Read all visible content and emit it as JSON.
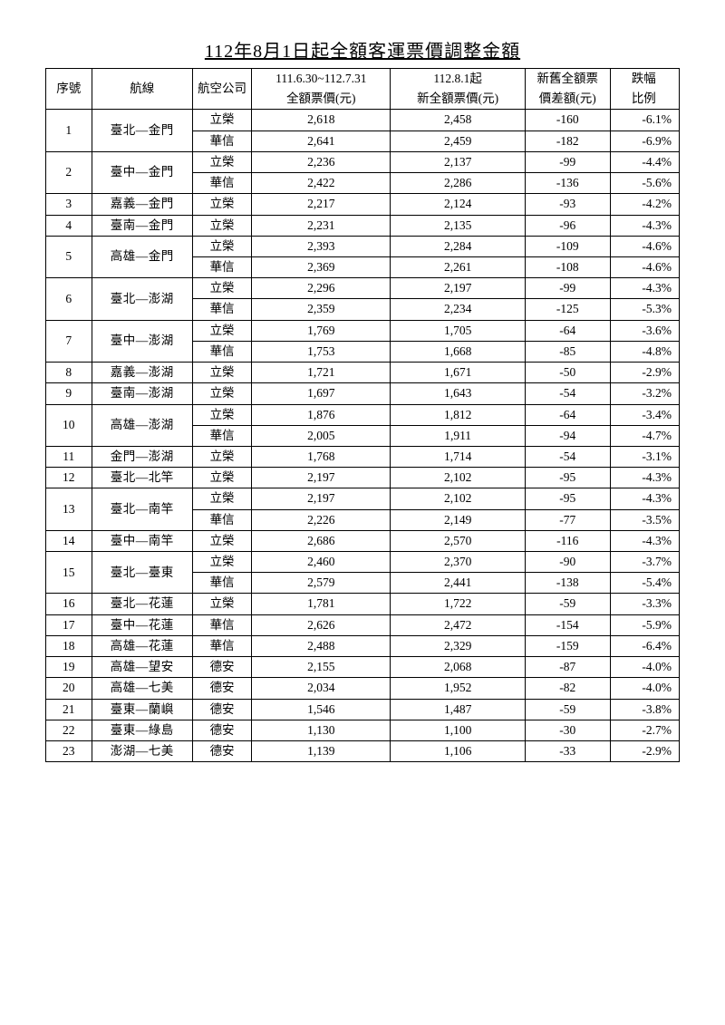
{
  "title": "112年8月1日起全額客運票價調整金額",
  "columns": {
    "seq": "序號",
    "route": "航線",
    "airline": "航空公司",
    "old_line1": "111.6.30~112.7.31",
    "old_line2": "全額票價(元)",
    "new_line1": "112.8.1起",
    "new_line2": "新全額票價(元)",
    "diff_line1": "新舊全額票",
    "diff_line2": "價差額(元)",
    "pct_line1": "跌幅",
    "pct_line2": "比例"
  },
  "style": {
    "background_color": "#ffffff",
    "border_color": "#000000",
    "font_size_title": 20,
    "font_size_body": 13.5
  },
  "routes": [
    {
      "seq": "1",
      "route": "臺北—金門",
      "airlines": [
        {
          "airline": "立榮",
          "old": "2,618",
          "new": "2,458",
          "diff": "-160",
          "pct": "-6.1%"
        },
        {
          "airline": "華信",
          "old": "2,641",
          "new": "2,459",
          "diff": "-182",
          "pct": "-6.9%"
        }
      ]
    },
    {
      "seq": "2",
      "route": "臺中—金門",
      "airlines": [
        {
          "airline": "立榮",
          "old": "2,236",
          "new": "2,137",
          "diff": "-99",
          "pct": "-4.4%"
        },
        {
          "airline": "華信",
          "old": "2,422",
          "new": "2,286",
          "diff": "-136",
          "pct": "-5.6%"
        }
      ]
    },
    {
      "seq": "3",
      "route": "嘉義—金門",
      "airlines": [
        {
          "airline": "立榮",
          "old": "2,217",
          "new": "2,124",
          "diff": "-93",
          "pct": "-4.2%"
        }
      ]
    },
    {
      "seq": "4",
      "route": "臺南—金門",
      "airlines": [
        {
          "airline": "立榮",
          "old": "2,231",
          "new": "2,135",
          "diff": "-96",
          "pct": "-4.3%"
        }
      ]
    },
    {
      "seq": "5",
      "route": "高雄—金門",
      "airlines": [
        {
          "airline": "立榮",
          "old": "2,393",
          "new": "2,284",
          "diff": "-109",
          "pct": "-4.6%"
        },
        {
          "airline": "華信",
          "old": "2,369",
          "new": "2,261",
          "diff": "-108",
          "pct": "-4.6%"
        }
      ]
    },
    {
      "seq": "6",
      "route": "臺北—澎湖",
      "airlines": [
        {
          "airline": "立榮",
          "old": "2,296",
          "new": "2,197",
          "diff": "-99",
          "pct": "-4.3%"
        },
        {
          "airline": "華信",
          "old": "2,359",
          "new": "2,234",
          "diff": "-125",
          "pct": "-5.3%"
        }
      ]
    },
    {
      "seq": "7",
      "route": "臺中—澎湖",
      "airlines": [
        {
          "airline": "立榮",
          "old": "1,769",
          "new": "1,705",
          "diff": "-64",
          "pct": "-3.6%"
        },
        {
          "airline": "華信",
          "old": "1,753",
          "new": "1,668",
          "diff": "-85",
          "pct": "-4.8%"
        }
      ]
    },
    {
      "seq": "8",
      "route": "嘉義—澎湖",
      "airlines": [
        {
          "airline": "立榮",
          "old": "1,721",
          "new": "1,671",
          "diff": "-50",
          "pct": "-2.9%"
        }
      ]
    },
    {
      "seq": "9",
      "route": "臺南—澎湖",
      "airlines": [
        {
          "airline": "立榮",
          "old": "1,697",
          "new": "1,643",
          "diff": "-54",
          "pct": "-3.2%"
        }
      ]
    },
    {
      "seq": "10",
      "route": "高雄—澎湖",
      "airlines": [
        {
          "airline": "立榮",
          "old": "1,876",
          "new": "1,812",
          "diff": "-64",
          "pct": "-3.4%"
        },
        {
          "airline": "華信",
          "old": "2,005",
          "new": "1,911",
          "diff": "-94",
          "pct": "-4.7%"
        }
      ]
    },
    {
      "seq": "11",
      "route": "金門—澎湖",
      "airlines": [
        {
          "airline": "立榮",
          "old": "1,768",
          "new": "1,714",
          "diff": "-54",
          "pct": "-3.1%"
        }
      ]
    },
    {
      "seq": "12",
      "route": "臺北—北竿",
      "airlines": [
        {
          "airline": "立榮",
          "old": "2,197",
          "new": "2,102",
          "diff": "-95",
          "pct": "-4.3%"
        }
      ]
    },
    {
      "seq": "13",
      "route": "臺北—南竿",
      "airlines": [
        {
          "airline": "立榮",
          "old": "2,197",
          "new": "2,102",
          "diff": "-95",
          "pct": "-4.3%"
        },
        {
          "airline": "華信",
          "old": "2,226",
          "new": "2,149",
          "diff": "-77",
          "pct": "-3.5%"
        }
      ]
    },
    {
      "seq": "14",
      "route": "臺中—南竿",
      "airlines": [
        {
          "airline": "立榮",
          "old": "2,686",
          "new": "2,570",
          "diff": "-116",
          "pct": "-4.3%"
        }
      ]
    },
    {
      "seq": "15",
      "route": "臺北—臺東",
      "airlines": [
        {
          "airline": "立榮",
          "old": "2,460",
          "new": "2,370",
          "diff": "-90",
          "pct": "-3.7%"
        },
        {
          "airline": "華信",
          "old": "2,579",
          "new": "2,441",
          "diff": "-138",
          "pct": "-5.4%"
        }
      ]
    },
    {
      "seq": "16",
      "route": "臺北—花蓮",
      "airlines": [
        {
          "airline": "立榮",
          "old": "1,781",
          "new": "1,722",
          "diff": "-59",
          "pct": "-3.3%"
        }
      ]
    },
    {
      "seq": "17",
      "route": "臺中—花蓮",
      "airlines": [
        {
          "airline": "華信",
          "old": "2,626",
          "new": "2,472",
          "diff": "-154",
          "pct": "-5.9%"
        }
      ]
    },
    {
      "seq": "18",
      "route": "高雄—花蓮",
      "airlines": [
        {
          "airline": "華信",
          "old": "2,488",
          "new": "2,329",
          "diff": "-159",
          "pct": "-6.4%"
        }
      ]
    },
    {
      "seq": "19",
      "route": "高雄—望安",
      "airlines": [
        {
          "airline": "德安",
          "old": "2,155",
          "new": "2,068",
          "diff": "-87",
          "pct": "-4.0%"
        }
      ]
    },
    {
      "seq": "20",
      "route": "高雄—七美",
      "airlines": [
        {
          "airline": "德安",
          "old": "2,034",
          "new": "1,952",
          "diff": "-82",
          "pct": "-4.0%"
        }
      ]
    },
    {
      "seq": "21",
      "route": "臺東—蘭嶼",
      "airlines": [
        {
          "airline": "德安",
          "old": "1,546",
          "new": "1,487",
          "diff": "-59",
          "pct": "-3.8%"
        }
      ]
    },
    {
      "seq": "22",
      "route": "臺東—綠島",
      "airlines": [
        {
          "airline": "德安",
          "old": "1,130",
          "new": "1,100",
          "diff": "-30",
          "pct": "-2.7%"
        }
      ]
    },
    {
      "seq": "23",
      "route": "澎湖—七美",
      "airlines": [
        {
          "airline": "德安",
          "old": "1,139",
          "new": "1,106",
          "diff": "-33",
          "pct": "-2.9%"
        }
      ]
    }
  ]
}
